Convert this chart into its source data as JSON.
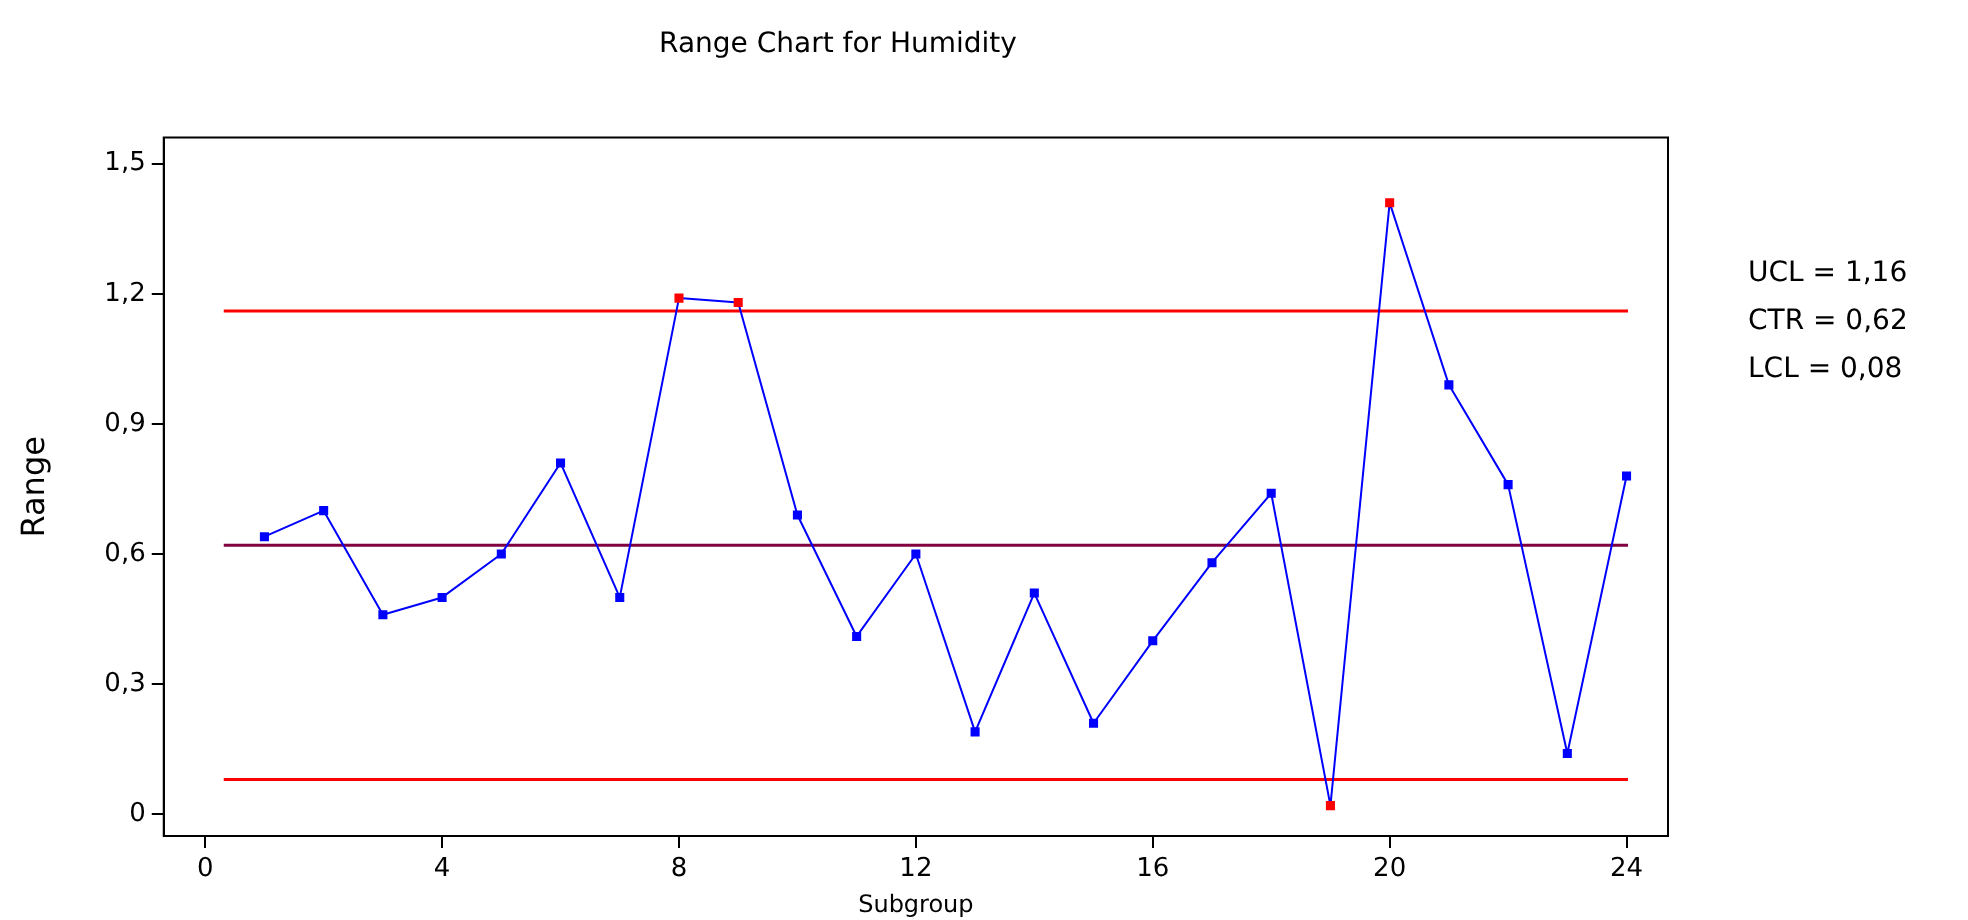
{
  "chart_data": {
    "type": "line",
    "title": "Range Chart for Humidity",
    "xlabel": "Subgroup",
    "ylabel": "Range",
    "x": [
      1,
      2,
      3,
      4,
      5,
      6,
      7,
      8,
      9,
      10,
      11,
      12,
      13,
      14,
      15,
      16,
      17,
      18,
      19,
      20,
      21,
      22,
      23,
      24
    ],
    "series": [
      {
        "color": "#0000ff",
        "values": [
          0.64,
          0.7,
          0.46,
          0.5,
          0.6,
          0.81,
          0.5,
          1.19,
          1.18,
          0.69,
          0.41,
          0.6,
          0.19,
          0.51,
          0.21,
          0.4,
          0.58,
          0.74,
          0.02,
          1.41,
          0.99,
          0.76,
          0.14,
          0.78
        ],
        "colors": [
          "#0000ff",
          "#0000ff",
          "#0000ff",
          "#0000ff",
          "#0000ff",
          "#0000ff",
          "#0000ff",
          "#ff0000",
          "#ff0000",
          "#0000ff",
          "#0000ff",
          "#0000ff",
          "#0000ff",
          "#0000ff",
          "#0000ff",
          "#0000ff",
          "#0000ff",
          "#0000ff",
          "#ff0000",
          "#ff0000",
          "#0000ff",
          "#0000ff",
          "#0000ff",
          "#0000ff"
        ]
      }
    ],
    "xlim": [
      -0.7,
      24.7
    ],
    "ylim": [
      -0.05,
      1.56
    ],
    "xticks": [
      0,
      4,
      8,
      12,
      16,
      20,
      24
    ],
    "yticks": [
      0,
      {
        "value": 0.3,
        "label": "0,3"
      },
      {
        "value": 0.6,
        "label": "0,6"
      },
      {
        "value": 0.9,
        "label": "0,9"
      },
      {
        "value": 1.2,
        "label": "1,2"
      },
      {
        "value": 1.5,
        "label": "1,5"
      }
    ],
    "ref_lines": [
      {
        "axis": "y",
        "value": 1.16,
        "color": "#ff0000"
      },
      {
        "axis": "y",
        "value": 0.62,
        "color": "#800040"
      },
      {
        "axis": "y",
        "value": 0.08,
        "color": "#ff0000"
      }
    ],
    "annotations": [
      "UCL = 1,16",
      "CTR = 0,62",
      "LCL = 0,08"
    ],
    "grid": false,
    "legend": false,
    "marker": "square",
    "line_style": "solid"
  }
}
